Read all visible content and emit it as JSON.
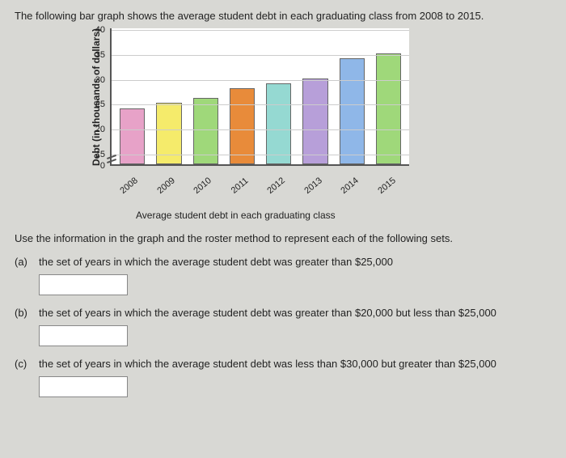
{
  "intro": "The following bar graph shows the average student debt in each graduating class from 2008 to 2015.",
  "chart": {
    "type": "bar",
    "ylabel": "Debt (in thousands of dollars)",
    "xlabel": "Average student debt in each graduating class",
    "ymin_displayed": 15,
    "ymax": 40,
    "yticks": [
      0,
      15,
      20,
      25,
      30,
      35,
      40
    ],
    "axis_break_between": [
      0,
      15
    ],
    "background_color": "#ffffff",
    "grid_color": "#cccccc",
    "axis_color": "#555555",
    "bar_border_color": "#666666",
    "label_fontsize": 12,
    "tick_fontsize": 11,
    "categories": [
      "2008",
      "2009",
      "2010",
      "2011",
      "2012",
      "2013",
      "2014",
      "2015"
    ],
    "values": [
      24,
      25,
      26,
      28,
      29,
      30,
      34,
      35
    ],
    "bar_colors": [
      "#e7a2c8",
      "#f5eb6b",
      "#9fd87a",
      "#e88b3a",
      "#95d9d2",
      "#b79fd9",
      "#8fb7e8",
      "#9fd87a"
    ]
  },
  "instruction": "Use the information in the graph and the roster method to represent each of the following sets.",
  "questions": {
    "a": {
      "label": "(a)",
      "text_pre": "the set of years in which the average student debt was greater than ",
      "amount": "$25,000",
      "text_post": ""
    },
    "b": {
      "label": "(b)",
      "text_pre": "the set of years in which the average student debt was greater than ",
      "amount1": "$20,000",
      "mid": " but less than ",
      "amount2": "$25,000"
    },
    "c": {
      "label": "(c)",
      "text_pre": "the set of years in which the average student debt was less than ",
      "amount1": "$30,000",
      "mid": " but greater than ",
      "amount2": "$25,000"
    }
  }
}
